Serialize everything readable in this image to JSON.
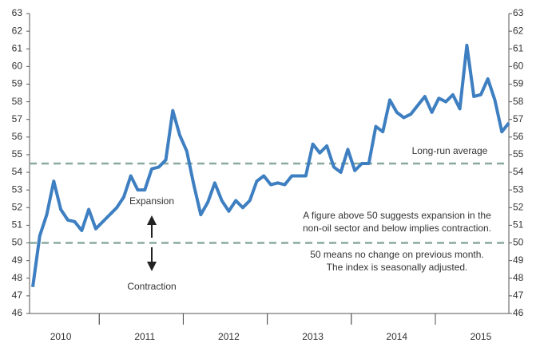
{
  "chart_data": {
    "type": "line",
    "categories": [
      null,
      null,
      null,
      null,
      "2010",
      null,
      null,
      null,
      null,
      null,
      null,
      null,
      null,
      null,
      null,
      null,
      "2011",
      null,
      null,
      null,
      null,
      null,
      null,
      null,
      null,
      null,
      null,
      null,
      "2012",
      null,
      null,
      null,
      null,
      null,
      null,
      null,
      null,
      null,
      null,
      null,
      "2013",
      null,
      null,
      null,
      null,
      null,
      null,
      null,
      null,
      null,
      null,
      null,
      "2014",
      null,
      null,
      null,
      null,
      null,
      null,
      null,
      null,
      null,
      null,
      null,
      "2015",
      null,
      null,
      null,
      null
    ],
    "series": [
      {
        "color": "#3e7fc1",
        "values": [
          47.5,
          50.4,
          51.6,
          53.5,
          51.9,
          51.3,
          51.2,
          50.7,
          51.9,
          50.8,
          51.2,
          51.6,
          52.0,
          52.6,
          53.8,
          53.0,
          53.0,
          54.2,
          54.3,
          54.7,
          57.5,
          56.1,
          55.2,
          53.3,
          51.6,
          52.3,
          53.4,
          52.4,
          51.8,
          52.4,
          52.0,
          52.4,
          53.5,
          53.8,
          53.3,
          53.4,
          53.3,
          53.8,
          53.8,
          53.8,
          55.6,
          55.1,
          55.5,
          54.3,
          54.0,
          55.3,
          54.1,
          54.5,
          54.5,
          56.6,
          56.3,
          58.1,
          57.4,
          57.1,
          57.3,
          57.8,
          58.3,
          57.4,
          58.2,
          58.0,
          58.4,
          57.6,
          61.2,
          58.3,
          58.4,
          59.3,
          58.1,
          56.3,
          56.8
        ]
      }
    ],
    "ylim": [
      46,
      63
    ],
    "yticks": [
      46,
      47,
      48,
      49,
      50,
      51,
      52,
      53,
      54,
      55,
      56,
      57,
      58,
      59,
      60,
      61,
      62,
      63
    ],
    "y2lim": [
      46,
      63
    ],
    "y2ticks": [
      46,
      47,
      48,
      49,
      50,
      51,
      52,
      53,
      54,
      55,
      56,
      57,
      58,
      59,
      60,
      61,
      62,
      63
    ],
    "reference_lines": [
      {
        "value": 54.5,
        "label": "Long-run average",
        "color": "#8aaaa0"
      },
      {
        "value": 50,
        "color": "#8aaaa0"
      }
    ],
    "annotations": {
      "expansion": "Expansion",
      "contraction": "Contraction",
      "note1": [
        "A figure above 50 suggests expansion in the",
        "non-oil sector and below implies contraction."
      ],
      "note2": [
        "50 means no change on previous month.",
        "The index is seasonally adjusted."
      ]
    }
  }
}
